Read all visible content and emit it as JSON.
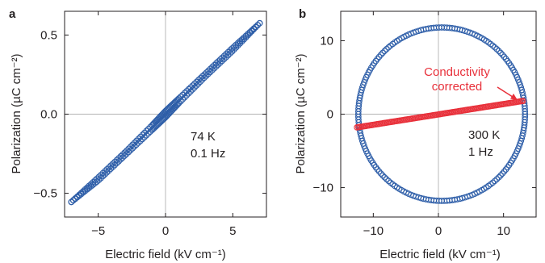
{
  "chart_data": [
    {
      "panel": "a",
      "type": "scatter",
      "xlabel": "Electric field (kV cm⁻¹)",
      "ylabel": "Polarization (µC cm⁻²)",
      "xlim": [
        -7.5,
        7.5
      ],
      "ylim": [
        -0.65,
        0.65
      ],
      "xticks": [
        -5,
        0,
        5
      ],
      "xtick_labels": [
        "−5",
        "0",
        "5"
      ],
      "yticks": [
        -0.5,
        0.0,
        0.5
      ],
      "ytick_labels": [
        "−0.5",
        "0.0",
        "0.5"
      ],
      "zero_lines": true,
      "marker": "open-circle",
      "annotations": [
        "74 K",
        "0.1 Hz"
      ],
      "series": [
        {
          "color": "#2e5ea8",
          "branch_up": {
            "x": [
              -7.0,
              -5.0,
              -3.0,
              -1.0,
              0.0,
              1.0,
              3.0,
              5.0,
              7.0
            ],
            "y": [
              -0.555,
              -0.4,
              -0.24,
              -0.07,
              0.02,
              0.1,
              0.26,
              0.42,
              0.575
            ]
          },
          "branch_down": {
            "x": [
              7.0,
              5.0,
              3.0,
              1.0,
              0.0,
              -1.0,
              -3.0,
              -5.0,
              -7.0
            ],
            "y": [
              0.575,
              0.4,
              0.24,
              0.07,
              -0.02,
              -0.1,
              -0.26,
              -0.42,
              -0.555
            ]
          }
        }
      ]
    },
    {
      "panel": "b",
      "type": "scatter",
      "xlabel": "Electric field (kV cm⁻¹)",
      "ylabel": "Polarization (µC cm⁻²)",
      "xlim": [
        -15,
        15
      ],
      "ylim": [
        -14,
        14
      ],
      "xticks": [
        -10,
        0,
        10
      ],
      "xtick_labels": [
        "−10",
        "0",
        "10"
      ],
      "yticks": [
        -10,
        0,
        10
      ],
      "ytick_labels": [
        "−10",
        "0",
        "10"
      ],
      "zero_lines": true,
      "marker": "open-circle",
      "annotations": [
        "300 K",
        "1 Hz"
      ],
      "series": [
        {
          "color": "#2e5ea8",
          "loop": {
            "center": [
              0.5,
              0.0
            ],
            "x_semi_axis": 12.8,
            "y_semi_axis": 11.8
          }
        },
        {
          "name": "Conductivity corrected",
          "color": "#e8303a",
          "x": [
            -12.5,
            13.0
          ],
          "y": [
            -1.8,
            1.8
          ]
        }
      ],
      "arrow_label": [
        "Conductivity",
        "corrected"
      ]
    }
  ],
  "panels": {
    "a": {
      "label": "a"
    },
    "b": {
      "label": "b"
    }
  }
}
